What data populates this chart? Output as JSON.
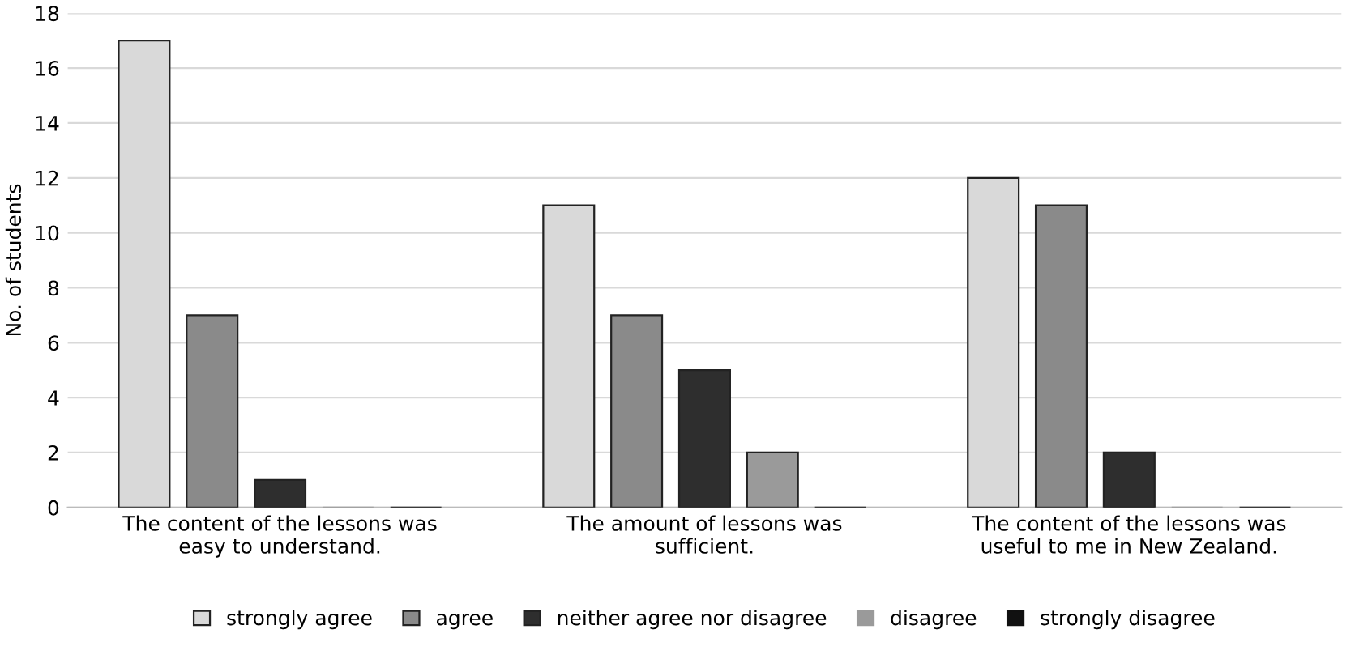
{
  "chart_data": {
    "type": "bar",
    "ylabel": "No. of students",
    "categories": [
      "The content of the lessons was\neasy to understand.",
      "The amount of lessons was\nsufficient.",
      "The content of the lessons was\nuseful to me in New Zealand."
    ],
    "series": [
      {
        "name": "strongly agree",
        "color": "#d9d9d9",
        "values": [
          17,
          11,
          12
        ]
      },
      {
        "name": "agree",
        "color": "#8a8a8a",
        "values": [
          7,
          7,
          11
        ]
      },
      {
        "name": "neither agree nor disagree",
        "color": "#2e2e2e",
        "values": [
          1,
          5,
          2
        ]
      },
      {
        "name": "disagree",
        "color": "#9a9a9a",
        "values": [
          0,
          2,
          0
        ]
      },
      {
        "name": "strongly disagree",
        "color": "#111111",
        "values": [
          0,
          0,
          0
        ]
      }
    ],
    "ylim": [
      0,
      18
    ],
    "yticks": [
      0,
      2,
      4,
      6,
      8,
      10,
      12,
      14,
      16,
      18
    ],
    "grid": "y",
    "legend": "bottom"
  }
}
